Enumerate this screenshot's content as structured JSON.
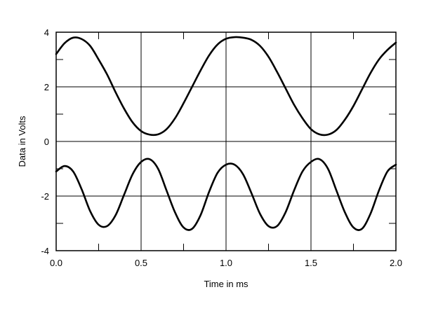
{
  "chart_data": {
    "type": "line",
    "title": "",
    "xlabel": "Time in ms",
    "ylabel": "Data in Volts",
    "xlim": [
      0.0,
      2.0
    ],
    "ylim": [
      -4,
      4
    ],
    "grid": true,
    "legend": "none",
    "x_ticks": [
      "0.0",
      "0.5",
      "1.0",
      "1.5",
      "2.0"
    ],
    "y_ticks": [
      "4",
      "2",
      "0",
      "-2",
      "-4"
    ],
    "x": [
      0.0,
      0.05,
      0.1,
      0.15,
      0.2,
      0.25,
      0.3,
      0.35,
      0.4,
      0.45,
      0.5,
      0.55,
      0.6,
      0.65,
      0.7,
      0.75,
      0.8,
      0.85,
      0.9,
      0.95,
      1.0,
      1.05,
      1.1,
      1.15,
      1.2,
      1.25,
      1.3,
      1.35,
      1.4,
      1.45,
      1.5,
      1.55,
      1.6,
      1.65,
      1.7,
      1.75,
      1.8,
      1.85,
      1.9,
      1.95,
      2.0
    ],
    "series": [
      {
        "values": [
          3.2,
          3.6,
          3.8,
          3.75,
          3.5,
          3.0,
          2.45,
          1.8,
          1.2,
          0.7,
          0.38,
          0.25,
          0.26,
          0.45,
          0.85,
          1.4,
          2.0,
          2.6,
          3.15,
          3.55,
          3.76,
          3.82,
          3.8,
          3.72,
          3.5,
          3.1,
          2.55,
          1.95,
          1.35,
          0.85,
          0.45,
          0.26,
          0.25,
          0.42,
          0.8,
          1.3,
          1.9,
          2.5,
          3.0,
          3.35,
          3.62
        ]
      },
      {
        "values": [
          -1.1,
          -0.9,
          -1.1,
          -1.75,
          -2.55,
          -3.05,
          -3.1,
          -2.7,
          -1.95,
          -1.2,
          -0.75,
          -0.65,
          -1.0,
          -1.8,
          -2.6,
          -3.15,
          -3.2,
          -2.7,
          -1.85,
          -1.15,
          -0.85,
          -0.85,
          -1.2,
          -1.9,
          -2.65,
          -3.1,
          -3.1,
          -2.6,
          -1.8,
          -1.1,
          -0.75,
          -0.65,
          -1.0,
          -1.8,
          -2.6,
          -3.15,
          -3.2,
          -2.65,
          -1.8,
          -1.1,
          -0.85
        ]
      }
    ]
  }
}
